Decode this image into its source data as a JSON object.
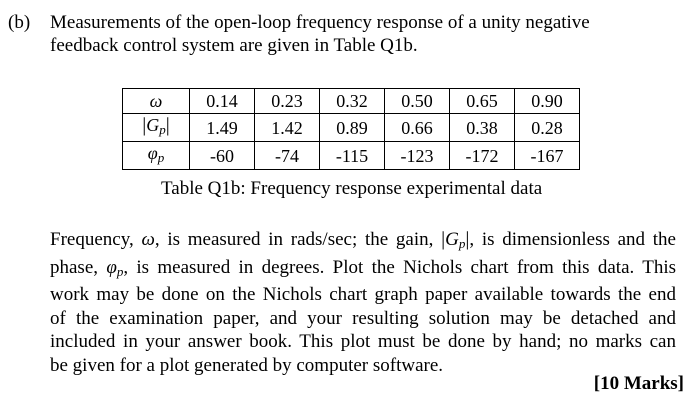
{
  "question": {
    "label": "(b)",
    "intro_lines": [
      "Measurements of the open-loop frequency response of a unity negative",
      "feedback control system are given in Table Q1b."
    ]
  },
  "table": {
    "omega_symbol": "ω",
    "gain_symbol": "G",
    "gain_subscript": "p",
    "phase_symbol": "φ",
    "phase_subscript": "p",
    "omega": [
      "0.14",
      "0.23",
      "0.32",
      "0.50",
      "0.65",
      "0.90"
    ],
    "gain": [
      "1.49",
      "1.42",
      "0.89",
      "0.66",
      "0.38",
      "0.28"
    ],
    "phase": [
      "-60",
      "-74",
      "-115",
      "-123",
      "-172",
      "-167"
    ]
  },
  "caption": "Table Q1b: Frequency response experimental data",
  "body": {
    "l1_a": "Frequency, ",
    "l1_omega": "ω",
    "l1_b": ", is measured in rads/sec; the gain, ",
    "l1_gain": "G",
    "l1_gain_sub": "p",
    "l1_c": ", is dimensionless and the",
    "l2_a": "phase, ",
    "l2_phi": "φ",
    "l2_phi_sub": "p",
    "l2_b": ", is measured in degrees. Plot the Nichols chart from this data. This",
    "lines_rest": [
      "work may be done on the Nichols chart graph paper available towards the end",
      "of the examination paper, and your resulting solution may be detached and",
      "included in your answer book. This plot must be done by hand; no marks can",
      "be given for a plot generated by computer software."
    ]
  },
  "marks": "[10 Marks]"
}
